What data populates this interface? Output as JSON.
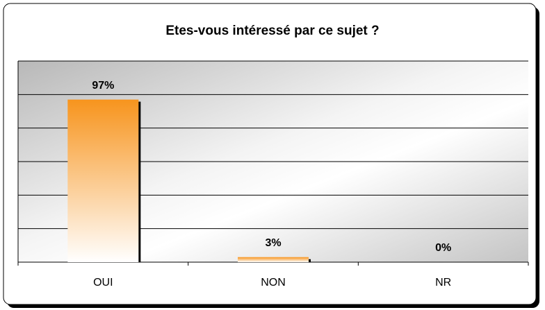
{
  "chart_data": {
    "type": "bar",
    "title": "Etes-vous intéressé par ce sujet ?",
    "categories": [
      "OUI",
      "NON",
      "NR"
    ],
    "values": [
      97,
      3,
      0
    ],
    "value_labels": [
      "97%",
      "3%",
      "0%"
    ],
    "color": "#f7941d",
    "ylim": [
      0,
      120
    ],
    "yticks": [
      0,
      20,
      40,
      60,
      80,
      100,
      120
    ],
    "grid": true
  }
}
